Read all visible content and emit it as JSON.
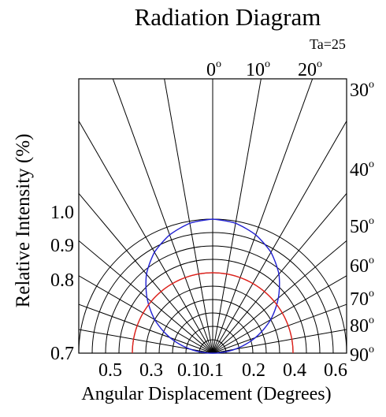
{
  "chart_data": {
    "type": "polar",
    "title": "Radiation Diagram",
    "subtitle": "Ta=25",
    "xlabel": "Angular Displacement (Degrees)",
    "ylabel": "Relative Intensity (%)",
    "top_angle_labels": [
      {
        "value": "0",
        "sup": "o"
      },
      {
        "value": "10",
        "sup": "o"
      },
      {
        "value": "20",
        "sup": "o"
      }
    ],
    "right_angle_labels": [
      {
        "value": "30",
        "sup": "o"
      },
      {
        "value": "40",
        "sup": "o"
      },
      {
        "value": "50",
        "sup": "o"
      },
      {
        "value": "60",
        "sup": "o"
      },
      {
        "value": "70",
        "sup": "o"
      },
      {
        "value": "80",
        "sup": "o"
      },
      {
        "value": "90",
        "sup": "o"
      }
    ],
    "left_tick_labels": [
      "1.0",
      "0.9",
      "0.8",
      "0.7"
    ],
    "bottom_tick_labels": [
      "0.5",
      "0.3",
      "0.1",
      "0.1",
      "0.2",
      "0.4",
      "0.6"
    ],
    "radial_rings": [
      0.1,
      0.2,
      0.3,
      0.4,
      0.5,
      0.6,
      0.7,
      0.8,
      0.9,
      1.0
    ],
    "angle_spokes_deg": [
      -80,
      -70,
      -60,
      -50,
      -40,
      -30,
      -20,
      -10,
      0,
      10,
      20,
      30,
      40,
      50,
      60,
      70,
      80
    ],
    "series": [
      {
        "color": "#1f1fd1",
        "x_deg": [
          -90,
          -80,
          -70,
          -60,
          -50,
          -40,
          -30,
          -20,
          -10,
          0,
          10,
          20,
          30,
          40,
          50,
          60,
          70,
          80,
          90
        ],
        "values": [
          0.0,
          0.17,
          0.34,
          0.5,
          0.64,
          0.77,
          0.87,
          0.94,
          0.985,
          1.0,
          0.985,
          0.94,
          0.87,
          0.77,
          0.64,
          0.5,
          0.34,
          0.17,
          0.0
        ]
      },
      {
        "color": "#e0201a",
        "x_deg": [
          -90,
          -80,
          -70,
          -60,
          -50,
          -40,
          -30,
          -20,
          -10,
          0,
          10,
          20,
          30,
          40,
          50,
          60,
          70,
          80,
          90
        ],
        "values": [
          0.6,
          0.6,
          0.6,
          0.6,
          0.6,
          0.6,
          0.6,
          0.6,
          0.6,
          0.6,
          0.6,
          0.6,
          0.6,
          0.6,
          0.6,
          0.6,
          0.6,
          0.6,
          0.6
        ]
      }
    ]
  }
}
